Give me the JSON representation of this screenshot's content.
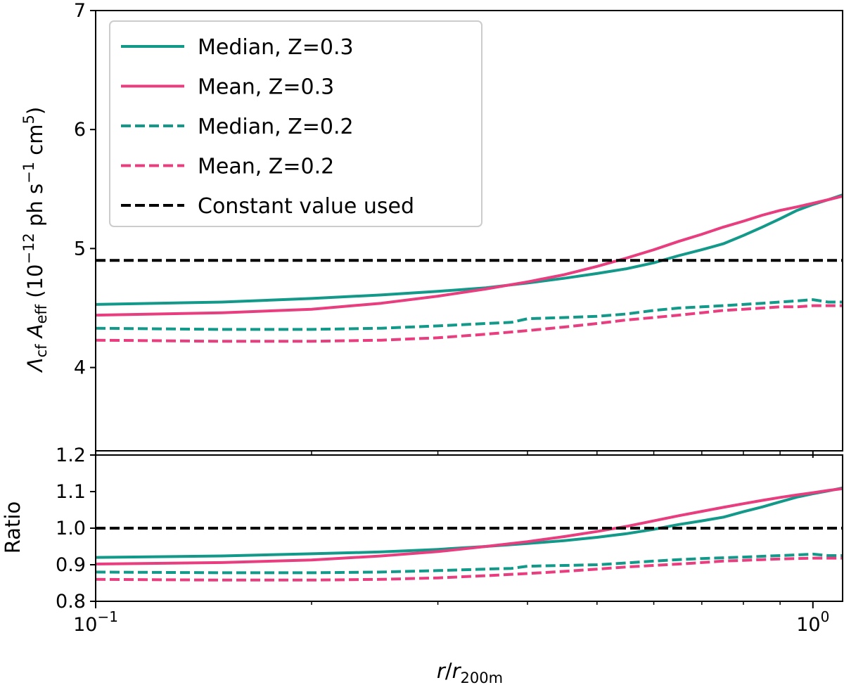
{
  "chart_data": [
    {
      "type": "line",
      "panel": "main",
      "xscale": "log",
      "xlim": [
        0.1,
        1.1
      ],
      "ylim": [
        3.3,
        7
      ],
      "yticks": [
        "4",
        "5",
        "6",
        "7"
      ],
      "ylabel": {
        "symbol": "Λ",
        "symbol_sub": "cf",
        "a": "A",
        "a_sub": "eff",
        "units_pre": "(10",
        "exp1": "−12",
        "units_mid": "ph s",
        "exp2": "−1",
        "units_mid2": "cm",
        "exp3": "5",
        "units_post": ")"
      },
      "legend_position": "upper left",
      "series": [
        {
          "name": "Median, Z=0.3",
          "color": "#13998a",
          "style": "solid",
          "x": [
            0.1,
            0.15,
            0.2,
            0.25,
            0.3,
            0.35,
            0.4,
            0.45,
            0.5,
            0.55,
            0.6,
            0.65,
            0.7,
            0.75,
            0.8,
            0.85,
            0.9,
            0.95,
            1.0,
            1.05,
            1.1
          ],
          "y": [
            4.53,
            4.55,
            4.58,
            4.61,
            4.64,
            4.67,
            4.71,
            4.75,
            4.79,
            4.83,
            4.88,
            4.94,
            4.99,
            5.04,
            5.11,
            5.18,
            5.25,
            5.32,
            5.37,
            5.41,
            5.45
          ]
        },
        {
          "name": "Mean, Z=0.3",
          "color": "#e83e7f",
          "style": "solid",
          "x": [
            0.1,
            0.15,
            0.2,
            0.25,
            0.3,
            0.35,
            0.4,
            0.45,
            0.5,
            0.55,
            0.6,
            0.65,
            0.7,
            0.75,
            0.8,
            0.85,
            0.9,
            0.95,
            1.0,
            1.05,
            1.1
          ],
          "y": [
            4.44,
            4.46,
            4.49,
            4.54,
            4.6,
            4.66,
            4.72,
            4.78,
            4.85,
            4.92,
            4.99,
            5.06,
            5.12,
            5.18,
            5.23,
            5.28,
            5.32,
            5.35,
            5.38,
            5.41,
            5.44
          ]
        },
        {
          "name": "Median, Z=0.2",
          "color": "#13998a",
          "style": "dashed",
          "x": [
            0.1,
            0.15,
            0.2,
            0.25,
            0.3,
            0.35,
            0.38,
            0.4,
            0.45,
            0.5,
            0.55,
            0.6,
            0.65,
            0.7,
            0.75,
            0.8,
            0.85,
            0.9,
            0.95,
            1.0,
            1.05,
            1.1
          ],
          "y": [
            4.33,
            4.32,
            4.32,
            4.33,
            4.35,
            4.37,
            4.38,
            4.41,
            4.42,
            4.43,
            4.45,
            4.48,
            4.5,
            4.51,
            4.52,
            4.53,
            4.54,
            4.55,
            4.56,
            4.57,
            4.55,
            4.55
          ]
        },
        {
          "name": "Mean, Z=0.2",
          "color": "#e83e7f",
          "style": "dashed",
          "x": [
            0.1,
            0.15,
            0.2,
            0.25,
            0.3,
            0.35,
            0.4,
            0.45,
            0.5,
            0.55,
            0.6,
            0.65,
            0.7,
            0.75,
            0.8,
            0.85,
            0.9,
            0.95,
            1.0,
            1.05,
            1.1
          ],
          "y": [
            4.23,
            4.22,
            4.22,
            4.23,
            4.25,
            4.28,
            4.31,
            4.34,
            4.37,
            4.4,
            4.42,
            4.44,
            4.46,
            4.48,
            4.49,
            4.5,
            4.51,
            4.51,
            4.52,
            4.52,
            4.52
          ]
        },
        {
          "name": "Constant value used",
          "color": "#000000",
          "style": "dashed",
          "x": [
            0.1,
            1.1
          ],
          "y": [
            4.9,
            4.9
          ]
        }
      ]
    },
    {
      "type": "line",
      "panel": "ratio",
      "xscale": "log",
      "xlim": [
        0.1,
        1.1
      ],
      "ylim": [
        0.8,
        1.2
      ],
      "yticks": [
        "0.8",
        "0.9",
        "1.0",
        "1.1",
        "1.2"
      ],
      "xticks": [
        {
          "base": "10",
          "exp": "−1"
        },
        {
          "base": "10",
          "exp": "0"
        }
      ],
      "ylabel": "Ratio",
      "xlabel": {
        "r": "r",
        "slash": "/",
        "r2": "r",
        "sub": "200m"
      },
      "series": [
        {
          "color": "#13998a",
          "style": "solid",
          "x": [
            0.1,
            0.15,
            0.2,
            0.25,
            0.3,
            0.35,
            0.4,
            0.45,
            0.5,
            0.55,
            0.6,
            0.65,
            0.7,
            0.75,
            0.8,
            0.85,
            0.9,
            0.95,
            1.0,
            1.05,
            1.1
          ],
          "y": [
            0.92,
            0.924,
            0.93,
            0.935,
            0.942,
            0.95,
            0.958,
            0.966,
            0.975,
            0.985,
            0.997,
            1.01,
            1.02,
            1.03,
            1.045,
            1.058,
            1.072,
            1.085,
            1.094,
            1.102,
            1.11
          ]
        },
        {
          "color": "#e83e7f",
          "style": "solid",
          "x": [
            0.1,
            0.15,
            0.2,
            0.25,
            0.3,
            0.35,
            0.4,
            0.45,
            0.5,
            0.55,
            0.6,
            0.65,
            0.7,
            0.75,
            0.8,
            0.85,
            0.9,
            0.95,
            1.0,
            1.05,
            1.1
          ],
          "y": [
            0.902,
            0.906,
            0.913,
            0.924,
            0.936,
            0.95,
            0.963,
            0.977,
            0.991,
            1.005,
            1.02,
            1.034,
            1.046,
            1.057,
            1.067,
            1.076,
            1.084,
            1.091,
            1.097,
            1.103,
            1.108
          ]
        },
        {
          "color": "#13998a",
          "style": "dashed",
          "x": [
            0.1,
            0.15,
            0.2,
            0.25,
            0.3,
            0.35,
            0.38,
            0.4,
            0.45,
            0.5,
            0.55,
            0.6,
            0.65,
            0.7,
            0.75,
            0.8,
            0.85,
            0.9,
            0.95,
            1.0,
            1.05,
            1.1
          ],
          "y": [
            0.88,
            0.878,
            0.878,
            0.88,
            0.884,
            0.888,
            0.89,
            0.896,
            0.898,
            0.9,
            0.905,
            0.91,
            0.914,
            0.917,
            0.919,
            0.921,
            0.923,
            0.925,
            0.927,
            0.929,
            0.925,
            0.925
          ]
        },
        {
          "color": "#e83e7f",
          "style": "dashed",
          "x": [
            0.1,
            0.15,
            0.2,
            0.25,
            0.3,
            0.35,
            0.4,
            0.45,
            0.5,
            0.55,
            0.6,
            0.65,
            0.7,
            0.75,
            0.8,
            0.85,
            0.9,
            0.95,
            1.0,
            1.05,
            1.1
          ],
          "y": [
            0.86,
            0.858,
            0.858,
            0.86,
            0.864,
            0.87,
            0.876,
            0.882,
            0.888,
            0.894,
            0.898,
            0.902,
            0.906,
            0.91,
            0.912,
            0.914,
            0.916,
            0.917,
            0.918,
            0.918,
            0.918
          ]
        },
        {
          "color": "#000000",
          "style": "dashed",
          "x": [
            0.1,
            1.1
          ],
          "y": [
            1.0,
            1.0
          ]
        }
      ]
    }
  ]
}
